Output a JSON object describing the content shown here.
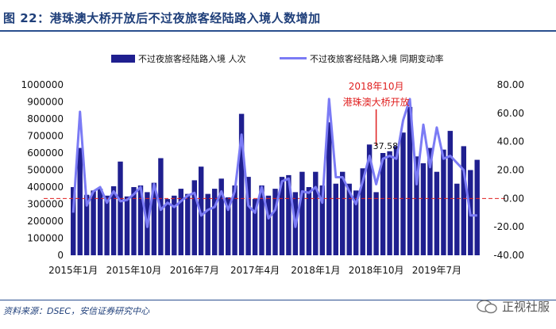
{
  "title": "图 22：港珠澳大桥开放后不过夜旅客经陆路入境人数增加",
  "source": "资料来源：DSEC，安信证券研究中心",
  "watermark": "正视社服",
  "chart_data": {
    "type": "bar+line",
    "series": [
      {
        "name": "不过夜旅客经陆路入境 人次",
        "type": "bar",
        "axis": "left",
        "color": "#1f1f8f"
      },
      {
        "name": "不过夜旅客经陆路入境 同期变动率",
        "type": "line",
        "axis": "right",
        "color": "#7b7bf5"
      }
    ],
    "x_tick_labels": [
      "2015年1月",
      "2015年10月",
      "2016年7月",
      "2017年4月",
      "2018年1月",
      "2018年10月",
      "2019年7月"
    ],
    "y_left": {
      "min": 0,
      "max": 1000000,
      "ticks": [
        "0",
        "100000",
        "200000",
        "300000",
        "400000",
        "500000",
        "600000",
        "700000",
        "800000",
        "900000",
        "1000000"
      ]
    },
    "y_right": {
      "min": -40,
      "max": 80,
      "ticks": [
        "-40.00",
        "-20.00",
        "0.00",
        "20.00",
        "40.00",
        "60.00",
        "80.00"
      ]
    },
    "bar_values": [
      400000,
      630000,
      355000,
      380000,
      390000,
      350000,
      405000,
      550000,
      345000,
      400000,
      410000,
      370000,
      425000,
      570000,
      330000,
      350000,
      390000,
      360000,
      440000,
      520000,
      360000,
      390000,
      450000,
      340000,
      410000,
      830000,
      460000,
      330000,
      410000,
      350000,
      390000,
      460000,
      470000,
      370000,
      490000,
      400000,
      490000,
      410000,
      780000,
      420000,
      490000,
      420000,
      380000,
      510000,
      650000,
      370000,
      600000,
      610000,
      640000,
      720000,
      870000,
      580000,
      540000,
      630000,
      490000,
      620000,
      730000,
      420000,
      640000,
      500000,
      560000
    ],
    "line_values": [
      -10,
      61,
      -5,
      5,
      8,
      -3,
      5,
      -2,
      -1,
      3,
      8,
      -20,
      10,
      -8,
      -3,
      -6,
      -2,
      2,
      4,
      -12,
      -8,
      -6,
      5,
      -8,
      5,
      45,
      -5,
      -10,
      8,
      -14,
      -8,
      12,
      14,
      -20,
      5,
      4,
      8,
      -3,
      70,
      15,
      15,
      5,
      -4,
      12,
      30,
      10,
      28,
      30,
      28,
      55,
      70,
      10,
      52,
      22,
      50,
      28,
      30,
      25,
      20,
      -12,
      -12
    ],
    "annotations": [
      {
        "text": "2018年10月",
        "color": "#e02020"
      },
      {
        "text": "港珠澳大桥开放",
        "color": "#e02020"
      },
      {
        "text": "37.58",
        "color": "#111111"
      }
    ],
    "reference_line": {
      "axis": "right",
      "value": 0,
      "style": "dashed",
      "color": "#e02020"
    }
  }
}
